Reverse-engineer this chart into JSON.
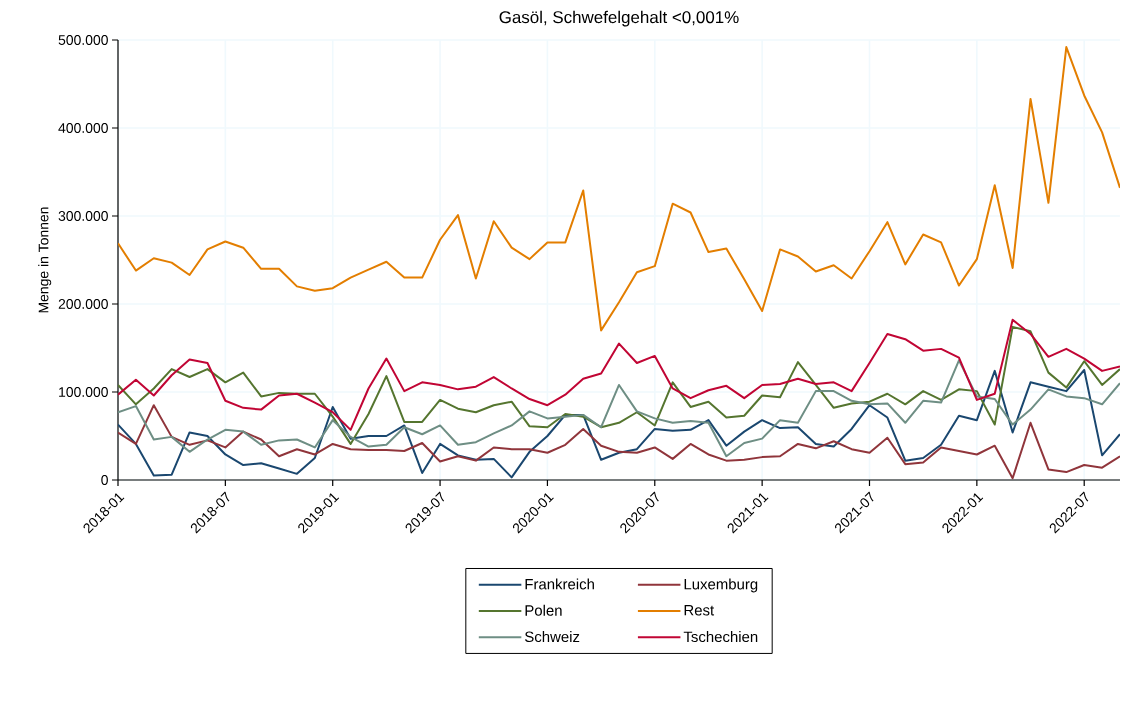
{
  "chart_data": {
    "type": "line",
    "title": "Gasöl, Schwefelgehalt <0,001%",
    "ylabel": "Menge in Tonnen",
    "x": [
      "2018-01",
      "2018-02",
      "2018-03",
      "2018-04",
      "2018-05",
      "2018-06",
      "2018-07",
      "2018-08",
      "2018-09",
      "2018-10",
      "2018-11",
      "2018-12",
      "2019-01",
      "2019-02",
      "2019-03",
      "2019-04",
      "2019-05",
      "2019-06",
      "2019-07",
      "2019-08",
      "2019-09",
      "2019-10",
      "2019-11",
      "2019-12",
      "2020-01",
      "2020-02",
      "2020-03",
      "2020-04",
      "2020-05",
      "2020-06",
      "2020-07",
      "2020-08",
      "2020-09",
      "2020-10",
      "2020-11",
      "2020-12",
      "2021-01",
      "2021-02",
      "2021-03",
      "2021-04",
      "2021-05",
      "2021-06",
      "2021-07",
      "2021-08",
      "2021-09",
      "2021-10",
      "2021-11",
      "2021-12",
      "2022-01",
      "2022-02",
      "2022-03",
      "2022-04",
      "2022-05",
      "2022-06",
      "2022-07",
      "2022-08",
      "2022-09"
    ],
    "series": [
      {
        "name": "Frankreich",
        "color": "#1a476f",
        "values": [
          63000,
          41000,
          5000,
          6000,
          54000,
          50000,
          29000,
          17000,
          19000,
          13000,
          7000,
          25000,
          83000,
          47000,
          50000,
          50000,
          62000,
          8000,
          41000,
          28000,
          23000,
          24000,
          3000,
          32000,
          50000,
          74000,
          74000,
          23000,
          31000,
          35000,
          58000,
          56000,
          57000,
          68000,
          39000,
          55000,
          68000,
          59000,
          60000,
          41000,
          38000,
          58000,
          85000,
          71000,
          22000,
          25000,
          40000,
          73000,
          68000,
          124000,
          54000,
          111000,
          106000,
          101000,
          125000,
          28000,
          52000
        ]
      },
      {
        "name": "Luxemburg",
        "color": "#90353b",
        "values": [
          54000,
          41000,
          85000,
          49000,
          40000,
          45000,
          37000,
          55000,
          46000,
          27000,
          35000,
          29000,
          41000,
          35000,
          34000,
          34000,
          33000,
          42000,
          21000,
          27000,
          22000,
          37000,
          35000,
          35000,
          31000,
          40000,
          58000,
          39000,
          32000,
          31000,
          37000,
          24000,
          41000,
          29000,
          22000,
          23000,
          26000,
          27000,
          41000,
          36000,
          44000,
          35000,
          31000,
          48000,
          18000,
          20000,
          37000,
          33000,
          29000,
          39000,
          2000,
          65000,
          12000,
          9000,
          17000,
          14000,
          27000
        ]
      },
      {
        "name": "Polen",
        "color": "#55752f",
        "values": [
          108000,
          86000,
          104000,
          126000,
          117000,
          126000,
          111000,
          122000,
          95000,
          99000,
          98000,
          98000,
          72000,
          41000,
          75000,
          118000,
          66000,
          66000,
          91000,
          81000,
          77000,
          85000,
          89000,
          61000,
          60000,
          75000,
          72000,
          60000,
          65000,
          77000,
          62000,
          111000,
          83000,
          89000,
          71000,
          73000,
          96000,
          94000,
          134000,
          108000,
          82000,
          87000,
          89000,
          98000,
          86000,
          101000,
          91000,
          103000,
          101000,
          63000,
          174000,
          169000,
          122000,
          105000,
          135000,
          108000,
          126000
        ]
      },
      {
        "name": "Rest",
        "color": "#e37e00",
        "values": [
          269000,
          238000,
          252000,
          247000,
          233000,
          262000,
          271000,
          264000,
          240000,
          240000,
          220000,
          215000,
          218000,
          230000,
          239000,
          248000,
          230000,
          230000,
          273000,
          301000,
          229000,
          294000,
          264000,
          251000,
          270000,
          270000,
          329000,
          170000,
          202000,
          236000,
          243000,
          314000,
          304000,
          259000,
          263000,
          228000,
          192000,
          262000,
          254000,
          237000,
          244000,
          229000,
          260000,
          293000,
          245000,
          279000,
          270000,
          221000,
          251000,
          335000,
          241000,
          433000,
          315000,
          492000,
          437000,
          395000,
          332000
        ]
      },
      {
        "name": "Schweiz",
        "color": "#6e8e84",
        "values": [
          77000,
          84000,
          46000,
          49000,
          32000,
          46000,
          57000,
          55000,
          40000,
          45000,
          46000,
          37000,
          68000,
          49000,
          38000,
          40000,
          60000,
          52000,
          62000,
          40000,
          43000,
          53000,
          62000,
          78000,
          70000,
          72000,
          74000,
          60000,
          108000,
          78000,
          70000,
          65000,
          67000,
          65000,
          27000,
          42000,
          47000,
          68000,
          65000,
          101000,
          101000,
          90000,
          86000,
          87000,
          65000,
          90000,
          88000,
          136000,
          95000,
          92000,
          63000,
          80000,
          103000,
          95000,
          93000,
          86000,
          110000
        ]
      },
      {
        "name": "Tschechien",
        "color": "#c10534",
        "values": [
          97000,
          114000,
          96000,
          119000,
          137000,
          133000,
          90000,
          82000,
          80000,
          96000,
          98000,
          88000,
          77000,
          57000,
          104000,
          138000,
          101000,
          111000,
          108000,
          103000,
          106000,
          117000,
          104000,
          92000,
          85000,
          97000,
          115000,
          121000,
          155000,
          133000,
          141000,
          104000,
          93000,
          102000,
          107000,
          93000,
          108000,
          109000,
          115000,
          109000,
          111000,
          101000,
          133000,
          166000,
          160000,
          147000,
          149000,
          139000,
          91000,
          98000,
          182000,
          166000,
          140000,
          149000,
          138000,
          124000,
          129000
        ]
      }
    ],
    "xlim": [
      "2018-01",
      "2022-09"
    ],
    "xticks": [
      "2018-01",
      "2018-07",
      "2019-01",
      "2019-07",
      "2020-01",
      "2020-07",
      "2021-01",
      "2021-07",
      "2022-01",
      "2022-07"
    ],
    "ylim": [
      0,
      500000
    ],
    "yticks": [
      {
        "value": 0,
        "label": "0"
      },
      {
        "value": 100000,
        "label": "100.000"
      },
      {
        "value": 200000,
        "label": "200.000"
      },
      {
        "value": 300000,
        "label": "300.000"
      },
      {
        "value": 400000,
        "label": "400.000"
      },
      {
        "value": 500000,
        "label": "500.000"
      }
    ],
    "grid": true,
    "legend": "bottom",
    "marker": "none",
    "line_style": "solid"
  }
}
